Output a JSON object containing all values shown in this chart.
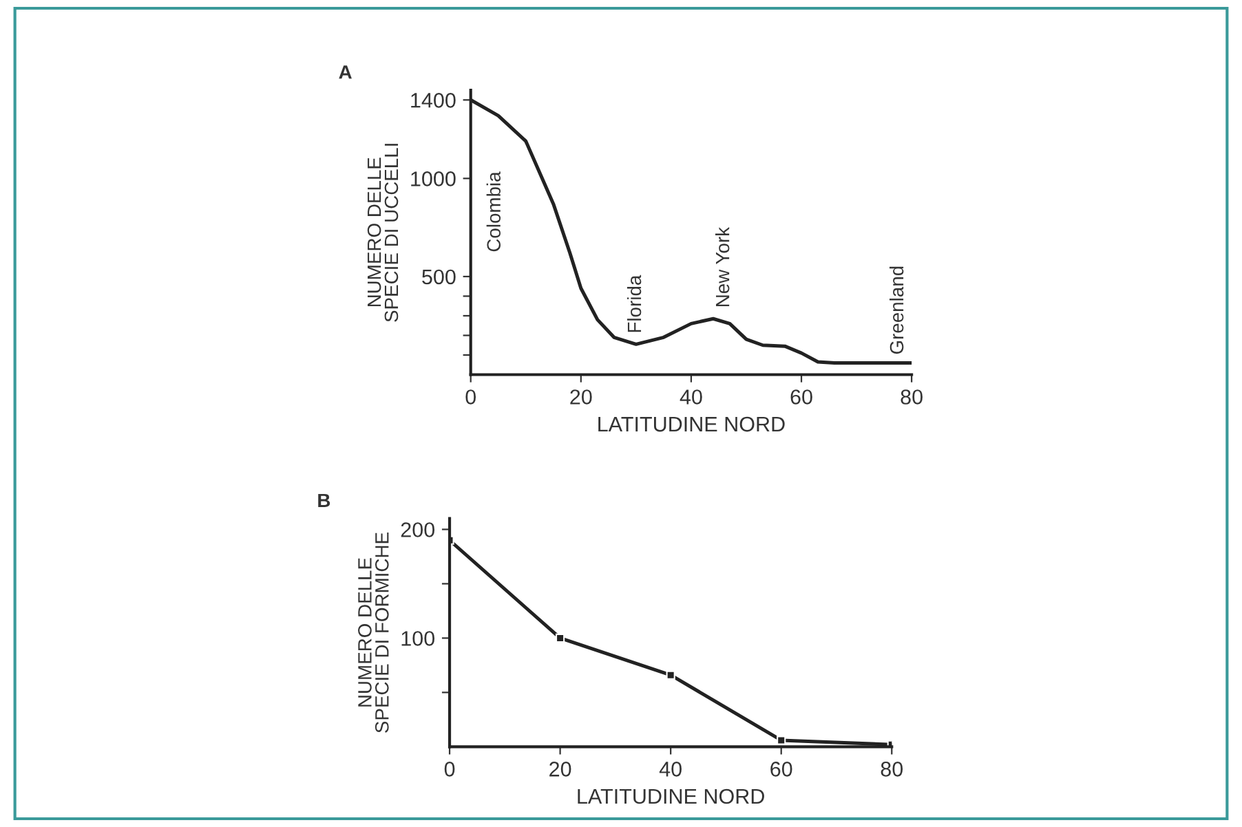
{
  "chart_data": [
    {
      "type": "line",
      "title": "A",
      "xlabel": "LATITUDINE NORD",
      "ylabel": "NUMERO DELLE\nSPECIE DI UCCELLI",
      "x": [
        0,
        5,
        10,
        15,
        18,
        20,
        23,
        26,
        30,
        35,
        40,
        44,
        47,
        50,
        53,
        57,
        60,
        63,
        66,
        80
      ],
      "series": [
        {
          "color": "#222222",
          "values": [
            1400,
            1320,
            1190,
            870,
            620,
            440,
            280,
            190,
            155,
            190,
            260,
            285,
            260,
            180,
            150,
            145,
            110,
            65,
            60,
            60
          ]
        }
      ],
      "xlim": [
        0,
        80
      ],
      "xticks": [
        0,
        20,
        40,
        60,
        80
      ],
      "ylim": [
        0,
        1450
      ],
      "yticks": [
        {
          "value": 100,
          "label": null
        },
        {
          "value": 200,
          "label": null
        },
        {
          "value": 300,
          "label": null
        },
        {
          "value": 400,
          "label": null
        },
        500,
        1000,
        1400
      ],
      "annotations": [
        "Colombia",
        "Florida",
        "New York",
        "Greenland"
      ],
      "grid": false,
      "legend": false,
      "marker": "none"
    },
    {
      "type": "line",
      "title": "B",
      "xlabel": "LATITUDINE NORD",
      "ylabel": "NUMERO DELLE\nSPECIE DI FORMICHE",
      "x": [
        0,
        20,
        40,
        60,
        80
      ],
      "series": [
        {
          "color": "#222222",
          "values": [
            190,
            100,
            66,
            6,
            2
          ]
        }
      ],
      "xlim": [
        0,
        80
      ],
      "xticks": [
        0,
        20,
        40,
        60,
        80
      ],
      "ylim": [
        0,
        210
      ],
      "yticks": [
        {
          "value": 50,
          "label": null
        },
        100,
        {
          "value": 150,
          "label": null
        },
        200
      ],
      "grid": false,
      "legend": false,
      "marker": "square"
    }
  ]
}
